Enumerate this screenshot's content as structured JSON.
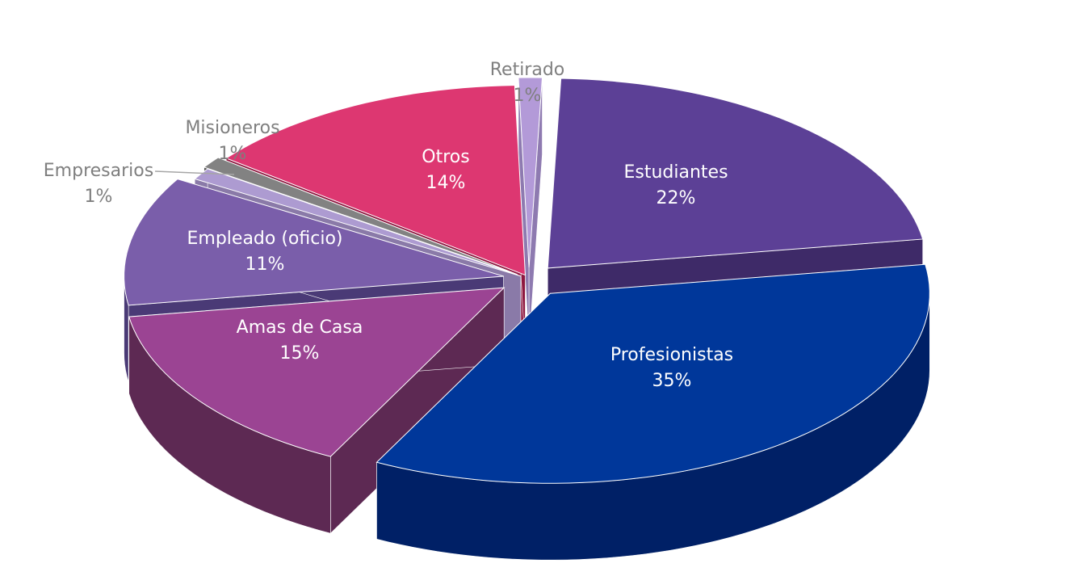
{
  "chart_data": {
    "type": "pie",
    "title": "",
    "three_d": true,
    "exploded": true,
    "slices": [
      {
        "label": "Estudiantes",
        "pct_label": "22%",
        "value": 22,
        "top_color": "#5c4096",
        "side_color": "#3e2a68",
        "label_color": "#ffffff",
        "label_inside": true
      },
      {
        "label": "Profesionistas",
        "pct_label": "35%",
        "value": 35,
        "top_color": "#00379a",
        "side_color": "#002066",
        "label_color": "#ffffff",
        "label_inside": true
      },
      {
        "label": "Amas de Casa",
        "pct_label": "15%",
        "value": 15,
        "top_color": "#9b4493",
        "side_color": "#5d2953",
        "label_color": "#ffffff",
        "label_inside": true
      },
      {
        "label": "Empleado (oficio)",
        "pct_label": "11%",
        "value": 11,
        "top_color": "#7a5eaa",
        "side_color": "#4a3a76",
        "label_color": "#ffffff",
        "label_inside": true
      },
      {
        "label": "Empresarios",
        "pct_label": "1%",
        "value": 1,
        "top_color": "#ad9bd1",
        "side_color": "#8a7aa8",
        "label_color": "#7f7f7f",
        "label_inside": false
      },
      {
        "label": "Misioneros",
        "pct_label": "1%",
        "value": 1,
        "top_color": "#828282",
        "side_color": "#555555",
        "label_color": "#7f7f7f",
        "label_inside": false
      },
      {
        "label": "Otros",
        "pct_label": "14%",
        "value": 14,
        "top_color": "#dd3771",
        "side_color": "#8e1840",
        "label_color": "#ffffff",
        "label_inside": true
      },
      {
        "label": "Retirado",
        "pct_label": "1%",
        "value": 1,
        "top_color": "#b39ad8",
        "side_color": "#8e7ab0",
        "label_color": "#7f7f7f",
        "label_inside": false
      }
    ]
  }
}
